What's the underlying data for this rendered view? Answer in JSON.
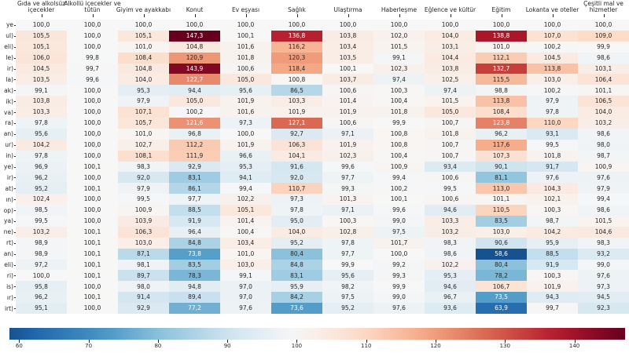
{
  "chart_data": {
    "type": "heatmap",
    "title": "",
    "columns": [
      {
        "lines": [
          "Gıda ve alkolsüz",
          "içecekler"
        ]
      },
      {
        "lines": [
          "Alkollü içecekler ve",
          "tütün"
        ]
      },
      {
        "lines": [
          "Giyim ve ayakkabı"
        ]
      },
      {
        "lines": [
          "Konut"
        ]
      },
      {
        "lines": [
          "Ev eşyası"
        ]
      },
      {
        "lines": [
          "Sağlık"
        ]
      },
      {
        "lines": [
          "Ulaştırma"
        ]
      },
      {
        "lines": [
          "Haberleşme"
        ]
      },
      {
        "lines": [
          "Eğlence ve kültür"
        ]
      },
      {
        "lines": [
          "Eğitim"
        ]
      },
      {
        "lines": [
          "Lokanta ve oteller"
        ]
      },
      {
        "lines": [
          "Çeşitli mal ve",
          "hizmetler"
        ]
      }
    ],
    "rows": [
      {
        "label": "ye",
        "values": [
          100.0,
          100.0,
          100.0,
          100.0,
          100.0,
          100.0,
          100.0,
          100.0,
          100.0,
          100.0,
          100.0,
          100.0
        ]
      },
      {
        "label": "ul)",
        "values": [
          105.5,
          100.0,
          105.1,
          147.3,
          100.1,
          136.8,
          103.8,
          102.0,
          104.0,
          138.8,
          107.0,
          109.0
        ]
      },
      {
        "label": "eli)",
        "values": [
          105.1,
          100.0,
          101.0,
          104.8,
          101.6,
          116.2,
          103.4,
          101.5,
          103.1,
          101.0,
          100.2,
          99.9
        ]
      },
      {
        "label": "le)",
        "values": [
          106.0,
          99.8,
          108.4,
          120.9,
          101.8,
          120.3,
          103.5,
          99.1,
          104.4,
          112.1,
          104.5,
          98.6
        ]
      },
      {
        "label": "ir)",
        "values": [
          104.5,
          99.7,
          104.8,
          143.9,
          100.6,
          118.4,
          100.1,
          102.3,
          103.8,
          132.7,
          113.8,
          103.1
        ]
      },
      {
        "label": "la)",
        "values": [
          103.5,
          99.6,
          104.0,
          122.7,
          105.0,
          100.8,
          103.7,
          97.4,
          102.5,
          115.5,
          103.0,
          106.4
        ]
      },
      {
        "label": "ak)",
        "values": [
          99.1,
          100.0,
          95.3,
          94.4,
          95.6,
          86.5,
          100.6,
          100.3,
          97.4,
          98.8,
          100.2,
          101.1
        ]
      },
      {
        "label": "ik)",
        "values": [
          103.8,
          100.0,
          97.9,
          105.0,
          101.9,
          103.3,
          101.4,
          100.4,
          101.5,
          113.8,
          97.9,
          106.5
        ]
      },
      {
        "label": "va)",
        "values": [
          103.3,
          100.0,
          107.1,
          100.2,
          101.6,
          101.9,
          101.9,
          101.8,
          105.0,
          108.4,
          97.8,
          104.0
        ]
      },
      {
        "label": "ra)",
        "values": [
          97.8,
          100.0,
          105.7,
          121.6,
          97.3,
          127.1,
          100.6,
          99.9,
          100.7,
          123.8,
          110.0,
          103.2
        ]
      },
      {
        "label": "an)",
        "values": [
          95.6,
          100.0,
          101.0,
          96.8,
          100.0,
          92.7,
          97.1,
          100.8,
          101.8,
          96.2,
          93.1,
          98.6
        ]
      },
      {
        "label": "ur)",
        "values": [
          104.2,
          100.0,
          102.7,
          112.2,
          101.9,
          106.3,
          101.9,
          100.8,
          100.7,
          117.6,
          99.5,
          98.0
        ]
      },
      {
        "label": "in)",
        "values": [
          97.8,
          100.0,
          108.1,
          111.9,
          96.6,
          104.1,
          102.3,
          100.4,
          100.7,
          107.3,
          101.8,
          98.7
        ]
      },
      {
        "label": "ye)",
        "values": [
          96.9,
          100.1,
          98.3,
          92.9,
          95.3,
          91.6,
          99.6,
          100.9,
          93.4,
          90.1,
          91.7,
          100.9
        ]
      },
      {
        "label": "ir)",
        "values": [
          96.2,
          100.0,
          92.0,
          83.1,
          94.1,
          92.0,
          97.7,
          99.4,
          100.6,
          81.1,
          97.6,
          97.6
        ]
      },
      {
        "label": "at)",
        "values": [
          95.2,
          100.1,
          97.9,
          86.1,
          99.4,
          110.7,
          99.3,
          100.2,
          99.5,
          113.0,
          104.3,
          97.9
        ]
      },
      {
        "label": "ın)",
        "values": [
          102.4,
          100.0,
          99.5,
          97.7,
          102.2,
          97.3,
          101.3,
          100.1,
          100.6,
          101.1,
          102.1,
          99.4
        ]
      },
      {
        "label": "op)",
        "values": [
          98.5,
          100.0,
          100.9,
          88.5,
          105.1,
          97.8,
          97.1,
          99.6,
          94.6,
          110.5,
          100.3,
          98.6
        ]
      },
      {
        "label": "ya)",
        "values": [
          99.5,
          100.0,
          103.9,
          91.9,
          101.4,
          95.0,
          100.3,
          99.0,
          103.3,
          83.5,
          98.7,
          101.5
        ]
      },
      {
        "label": "ne)",
        "values": [
          103.2,
          100.1,
          106.3,
          96.4,
          100.4,
          104.0,
          102.8,
          97.5,
          103.2,
          103.0,
          104.2,
          104.6
        ]
      },
      {
        "label": "rt)",
        "values": [
          98.9,
          100.1,
          103.0,
          84.8,
          103.4,
          95.2,
          97.8,
          101.7,
          98.3,
          90.6,
          95.9,
          98.3
        ]
      },
      {
        "label": "an)",
        "values": [
          98.9,
          100.1,
          87.1,
          73.8,
          101.0,
          80.4,
          97.7,
          100.0,
          98.6,
          58.6,
          88.5,
          93.2
        ]
      },
      {
        "label": "eli)",
        "values": [
          97.2,
          100.1,
          98.1,
          83.5,
          103.0,
          84.8,
          99.9,
          99.2,
          102.2,
          80.4,
          91.9,
          99.0
        ]
      },
      {
        "label": "ri)",
        "values": [
          100.0,
          100.1,
          89.7,
          78.3,
          99.1,
          83.1,
          95.6,
          99.3,
          95.3,
          78.2,
          100.3,
          97.6
        ]
      },
      {
        "label": "is)",
        "values": [
          95.8,
          100.0,
          98.0,
          94.8,
          97.0,
          95.9,
          98.2,
          99.9,
          94.6,
          106.7,
          101.9,
          97.3
        ]
      },
      {
        "label": "ır)",
        "values": [
          96.2,
          100.1,
          91.4,
          89.4,
          97.0,
          84.2,
          97.5,
          99.0,
          96.7,
          73.5,
          94.3,
          94.5
        ]
      },
      {
        "label": "irt)",
        "values": [
          95.1,
          100.0,
          92.9,
          77.2,
          97.6,
          73.6,
          95.2,
          97.6,
          93.6,
          63.9,
          99.7,
          92.3
        ]
      }
    ],
    "value_decimal_separator": ",",
    "colormap": {
      "name": "RdBu_r",
      "stops": [
        "#053061",
        "#2166ac",
        "#4393c3",
        "#92c5de",
        "#d1e5f0",
        "#f7f7f7",
        "#fddbc7",
        "#f4a582",
        "#d6604d",
        "#b2182b",
        "#67001f"
      ]
    },
    "center": 100,
    "vmin": 58.6,
    "vmax": 147.3,
    "legend_position": "bottom",
    "colorbar_ticks": [
      60,
      70,
      80,
      90,
      100,
      110,
      120,
      130,
      140
    ],
    "text_colors": {
      "dark": "#262626",
      "light": "#ffffff"
    },
    "grid": false
  }
}
